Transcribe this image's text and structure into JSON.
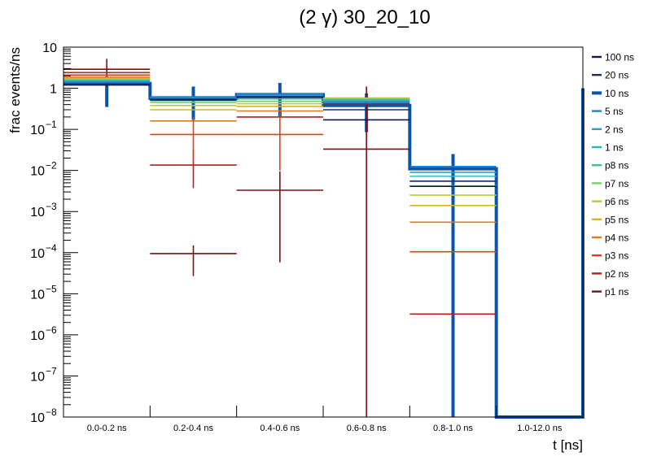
{
  "chart_data": {
    "type": "step",
    "title": "(2 γ) 30_20_10",
    "xlabel": "t [ns]",
    "ylabel": "frac events/ns",
    "yscale": "log",
    "ylim": [
      1e-08,
      10
    ],
    "legend_position": "right",
    "y_ticks": [
      {
        "value": 1e-08,
        "label": "10",
        "sup": "−8"
      },
      {
        "value": 1e-07,
        "label": "10",
        "sup": "−7"
      },
      {
        "value": 1e-06,
        "label": "10",
        "sup": "−6"
      },
      {
        "value": 1e-05,
        "label": "10",
        "sup": "−5"
      },
      {
        "value": 0.0001,
        "label": "10",
        "sup": "−4"
      },
      {
        "value": 0.001,
        "label": "10",
        "sup": "−3"
      },
      {
        "value": 0.01,
        "label": "10",
        "sup": "−2"
      },
      {
        "value": 0.1,
        "label": "10",
        "sup": "−1"
      },
      {
        "value": 1,
        "label": "1",
        "sup": ""
      },
      {
        "value": 10,
        "label": "10",
        "sup": ""
      }
    ],
    "categories": [
      "0.0-0.2 ns",
      "0.2-0.4 ns",
      "0.4-0.6 ns",
      "0.6-0.8 ns",
      "0.8-1.0 ns",
      "1.0-12.0 ns"
    ],
    "series": [
      {
        "name": "100 ns",
        "color": "#0b1a4a",
        "values": [
          1.2,
          0.52,
          0.6,
          0.17,
          0.0041,
          null
        ]
      },
      {
        "name": "20 ns",
        "color": "#1a2d6e",
        "values": [
          1.22,
          0.54,
          0.62,
          0.3,
          0.0055,
          null
        ]
      },
      {
        "name": "10 ns",
        "color": "#0b55a8",
        "thick": true,
        "values": [
          1.3,
          0.57,
          0.7,
          0.38,
          0.011,
          1e-08
        ],
        "errors": [
          [
            0.35,
            1.95
          ],
          [
            0.17,
            1.1
          ],
          [
            0.2,
            1.35
          ],
          [
            0.085,
            0.75
          ],
          [
            1e-08,
            0.025
          ],
          null
        ]
      },
      {
        "name": "5 ns",
        "color": "#1f7fd0",
        "values": [
          1.4,
          0.62,
          0.72,
          0.45,
          0.0125,
          null
        ]
      },
      {
        "name": "2 ns",
        "color": "#2a9dd4",
        "values": [
          1.45,
          0.6,
          0.68,
          0.48,
          0.009,
          null
        ]
      },
      {
        "name": "1 ns",
        "color": "#27b7bf",
        "values": [
          1.5,
          0.55,
          0.62,
          0.5,
          0.0072,
          null
        ]
      },
      {
        "name": "p8 ns",
        "color": "#3cc39c",
        "values": [
          1.55,
          0.5,
          0.55,
          0.52,
          0.0055,
          null
        ]
      },
      {
        "name": "p7 ns",
        "color": "#78cc6a",
        "values": [
          1.6,
          0.45,
          0.48,
          0.55,
          0.0042,
          null
        ]
      },
      {
        "name": "p6 ns",
        "color": "#b4cc3a",
        "values": [
          1.65,
          0.38,
          0.42,
          0.57,
          0.0025,
          null
        ]
      },
      {
        "name": "p5 ns",
        "color": "#d7b22a",
        "values": [
          1.75,
          0.3,
          0.36,
          0.58,
          0.0014,
          null
        ]
      },
      {
        "name": "p4 ns",
        "color": "#dc7a1e",
        "values": [
          1.85,
          0.16,
          0.28,
          0.55,
          0.00055,
          null
        ]
      },
      {
        "name": "p3 ns",
        "color": "#d2461a",
        "values": [
          2.1,
          0.075,
          0.075,
          0.5,
          0.000105,
          null
        ]
      },
      {
        "name": "p2 ns",
        "color": "#b0221a",
        "values": [
          2.4,
          0.0135,
          0.2,
          0.42,
          3.2e-06,
          null
        ]
      },
      {
        "name": "p1 ns",
        "color": "#7a1010",
        "values": [
          2.9,
          9.5e-05,
          0.0033,
          0.033,
          null,
          null
        ],
        "errors": [
          [
            1.1,
            5.2
          ],
          [
            2.7e-05,
            0.00015
          ],
          [
            5.8e-05,
            0.0095
          ],
          [
            1e-08,
            1.1
          ],
          null,
          null
        ]
      }
    ],
    "extra_error_bars": [
      {
        "series": "p2 ns",
        "bin": 1,
        "range": [
          0.0037,
          0.032
        ]
      },
      {
        "series": "p3 ns",
        "bin": 1,
        "range": [
          0.017,
          0.2
        ]
      },
      {
        "series": "p3 ns",
        "bin": 2,
        "range": [
          0.01,
          0.3
        ]
      }
    ]
  }
}
